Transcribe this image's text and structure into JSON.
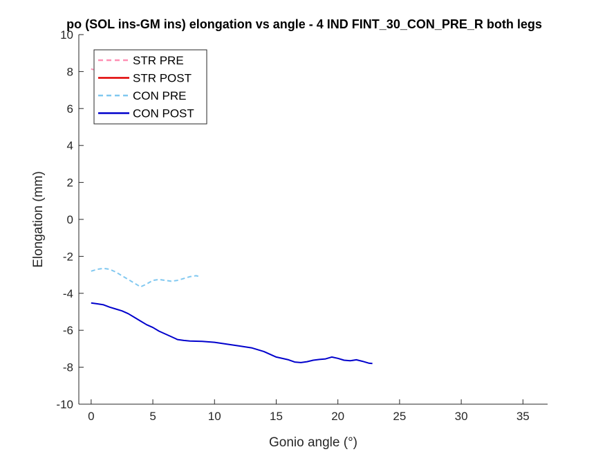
{
  "chart_data": {
    "type": "line",
    "title": "po (SOL ins-GM ins) elongation vs angle - 4 IND FINT_30_CON_PRE_R both legs",
    "xlabel": "Gonio angle (°)",
    "ylabel": "Elongation (mm)",
    "xlim": [
      -1,
      37
    ],
    "ylim": [
      -10,
      10
    ],
    "xticks": [
      0,
      5,
      10,
      15,
      20,
      25,
      30,
      35
    ],
    "yticks": [
      -10,
      -8,
      -6,
      -4,
      -2,
      0,
      2,
      4,
      6,
      8,
      10
    ],
    "grid": false,
    "legend_position": "top-left",
    "series": [
      {
        "name": "STR PRE",
        "color": "#ff8fb4",
        "dash": "dashed",
        "x": [
          0,
          0.1,
          0.2
        ],
        "y": [
          8.15,
          8.12,
          8.1
        ]
      },
      {
        "name": "STR POST",
        "color": "#e00000",
        "dash": "solid",
        "x": [],
        "y": []
      },
      {
        "name": "CON PRE",
        "color": "#80c8f0",
        "dash": "dashed",
        "x": [
          0,
          0.5,
          1,
          1.5,
          2,
          2.5,
          3,
          3.5,
          4,
          4.5,
          5,
          5.5,
          6,
          6.5,
          7,
          7.5,
          8,
          8.5,
          8.7
        ],
        "y": [
          -2.8,
          -2.7,
          -2.65,
          -2.7,
          -2.85,
          -3.05,
          -3.25,
          -3.45,
          -3.65,
          -3.5,
          -3.3,
          -3.25,
          -3.3,
          -3.35,
          -3.3,
          -3.2,
          -3.1,
          -3.05,
          -3.08
        ]
      },
      {
        "name": "CON POST",
        "color": "#0000cc",
        "dash": "solid",
        "x": [
          0,
          0.5,
          1,
          1.5,
          2,
          2.5,
          3,
          3.5,
          4,
          4.5,
          5,
          5.5,
          6,
          6.5,
          7,
          7.5,
          8,
          9,
          10,
          11,
          12,
          13,
          14,
          15,
          16,
          16.5,
          17,
          17.5,
          18,
          18.5,
          19,
          19.5,
          20,
          20.5,
          21,
          21.5,
          22,
          22.5,
          22.8
        ],
        "y": [
          -4.52,
          -4.57,
          -4.62,
          -4.75,
          -4.85,
          -4.95,
          -5.1,
          -5.3,
          -5.5,
          -5.7,
          -5.85,
          -6.05,
          -6.2,
          -6.35,
          -6.5,
          -6.55,
          -6.58,
          -6.6,
          -6.65,
          -6.75,
          -6.85,
          -6.95,
          -7.15,
          -7.45,
          -7.6,
          -7.72,
          -7.75,
          -7.7,
          -7.62,
          -7.58,
          -7.55,
          -7.45,
          -7.52,
          -7.62,
          -7.65,
          -7.6,
          -7.68,
          -7.78,
          -7.8
        ]
      }
    ]
  }
}
